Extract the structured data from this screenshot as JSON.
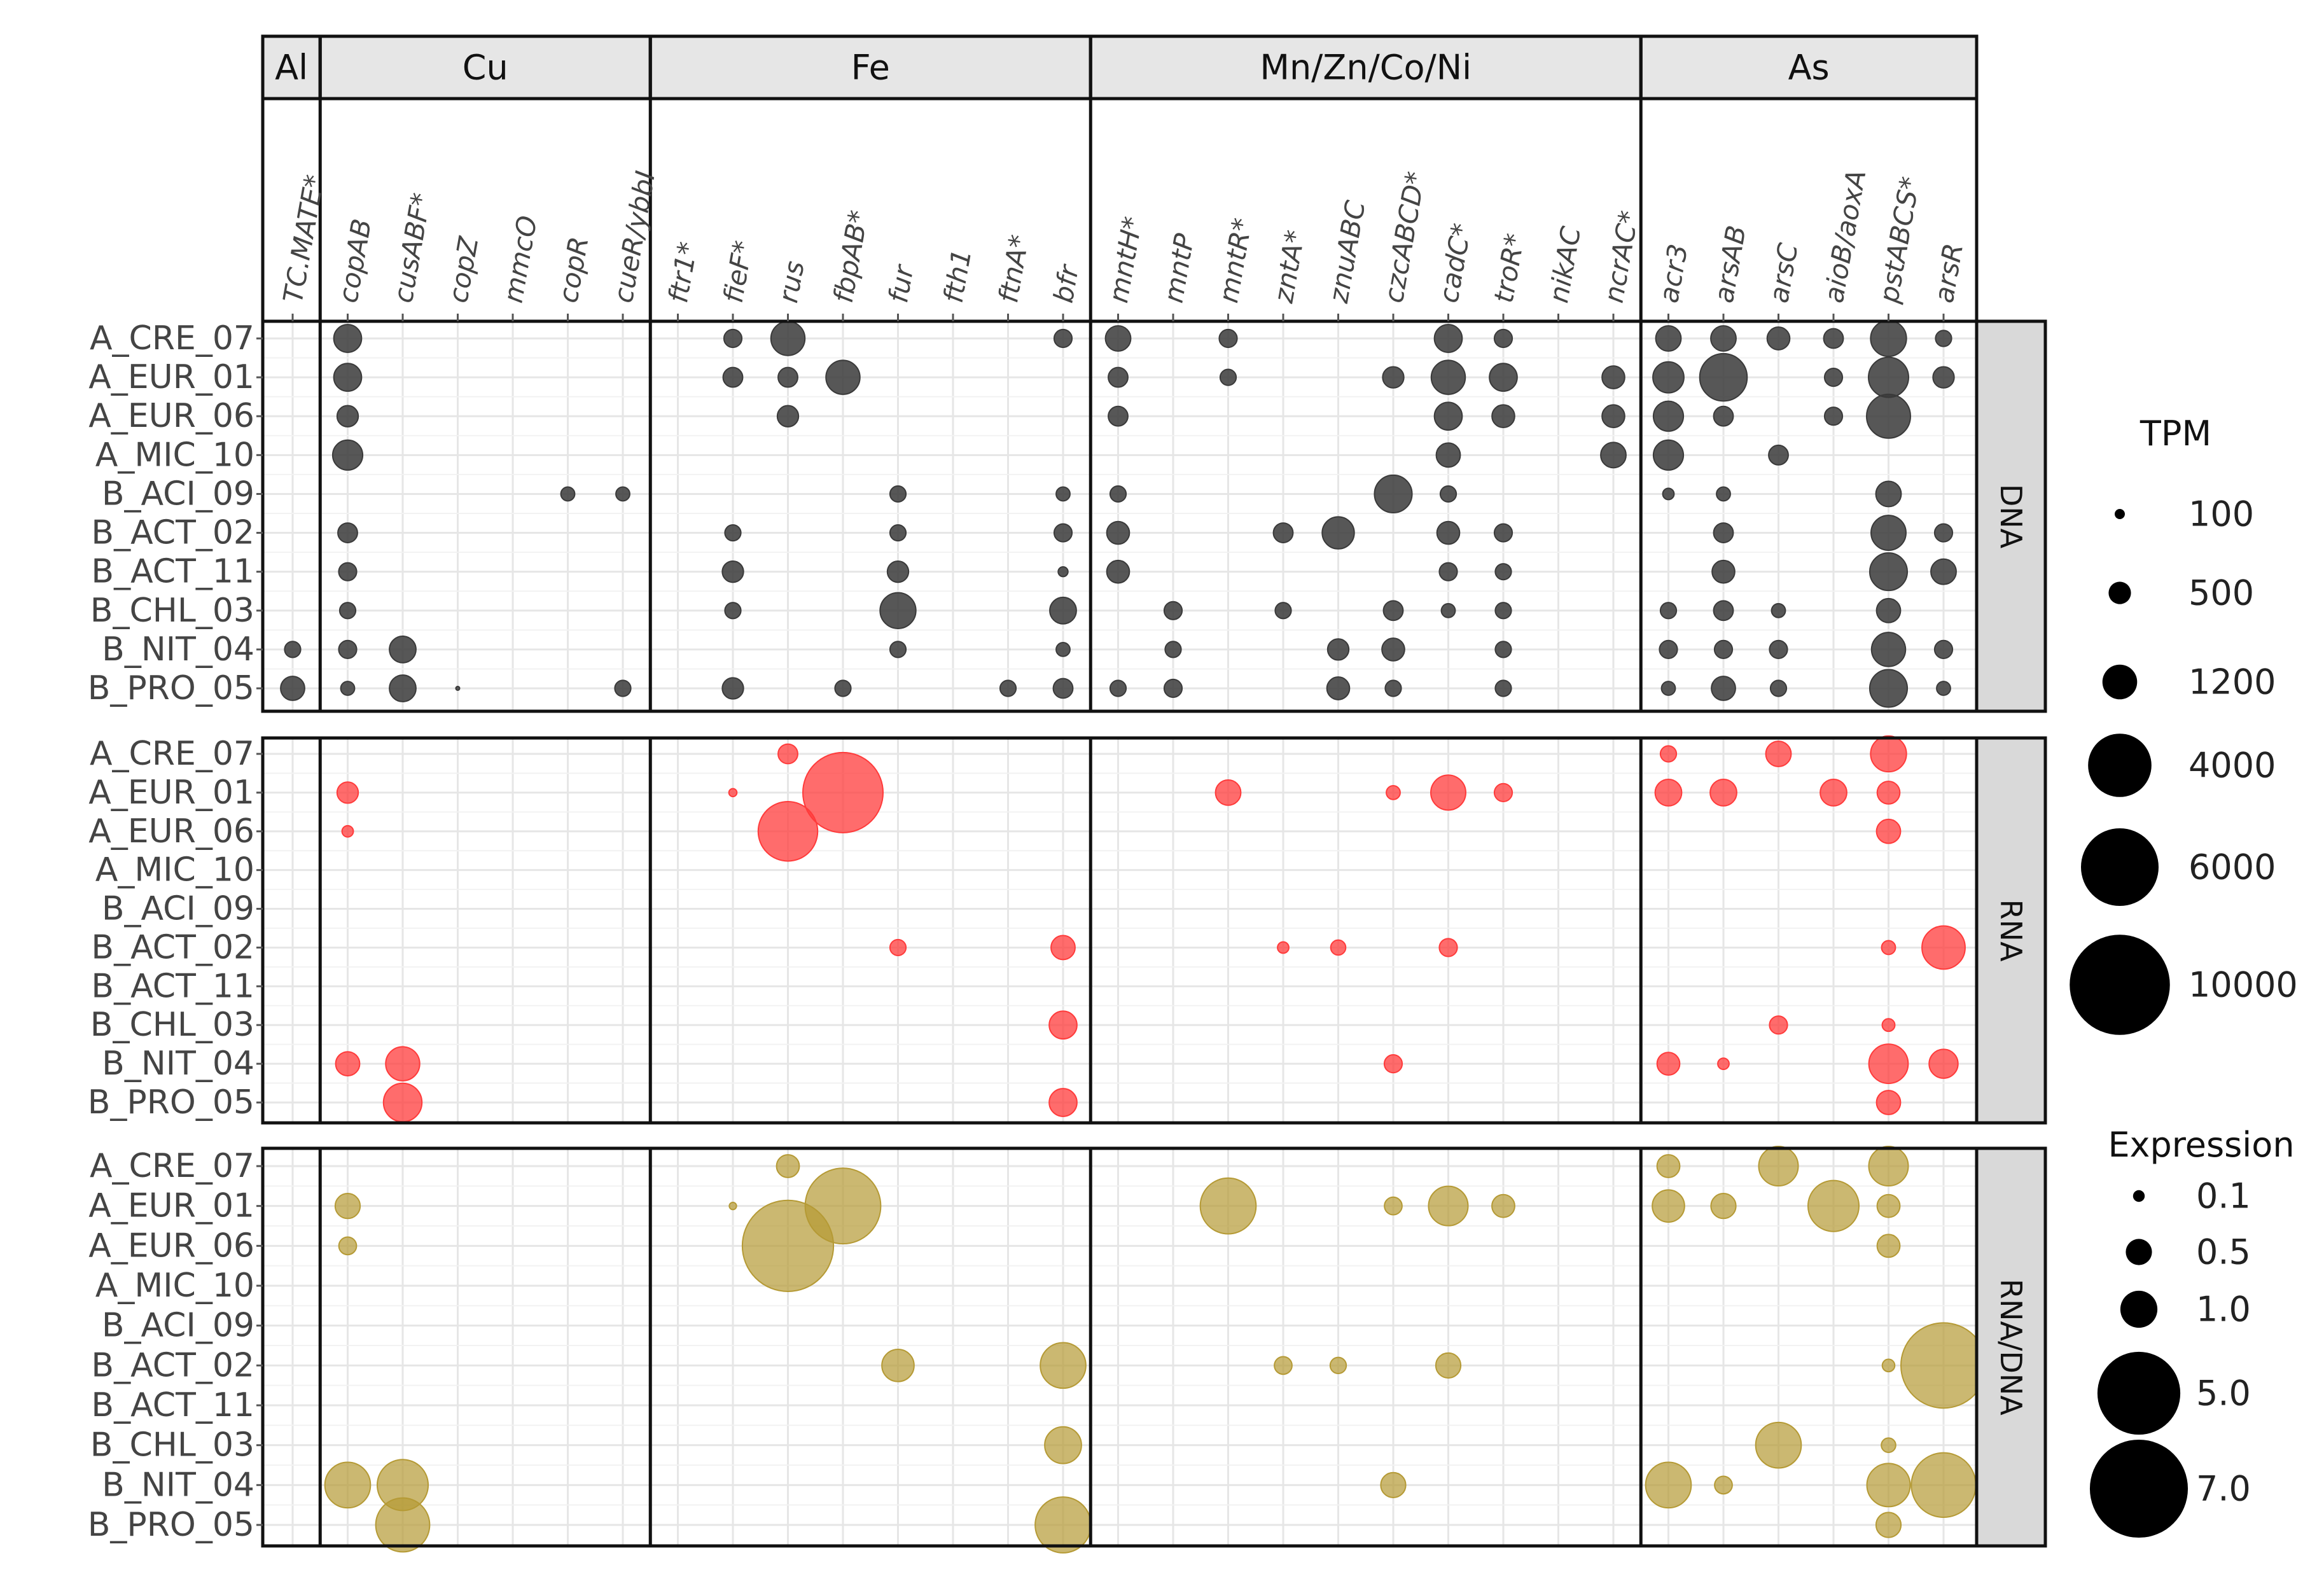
{
  "chart_data": {
    "type": "scatter",
    "subtype": "bubble-matrix",
    "element_groups": [
      {
        "name": "Al",
        "genes": [
          "TC.MATE*"
        ]
      },
      {
        "name": "Cu",
        "genes": [
          "copAB",
          "cusABF*",
          "copZ",
          "mmcO",
          "copR",
          "cueR/ybbI"
        ]
      },
      {
        "name": "Fe",
        "genes": [
          "ftr1*",
          "fieF*",
          "rus",
          "fbpAB*",
          "fur",
          "fth1",
          "ftnA*",
          "bfr"
        ]
      },
      {
        "name": "Mn/Zn/Co/Ni",
        "genes": [
          "mntH*",
          "mntP",
          "mntR*",
          "zntA*",
          "znuABC",
          "czcABCD*",
          "cadC*",
          "troR*",
          "nikAC",
          "ncrAC*"
        ]
      },
      {
        "name": "As",
        "genes": [
          "acr3",
          "arsAB",
          "arsC",
          "aioB/aoxA",
          "pstABCS*",
          "arsR"
        ]
      }
    ],
    "genes": [
      "TC.MATE*",
      "copAB",
      "cusABF*",
      "copZ",
      "mmcO",
      "copR",
      "cueR/ybbI",
      "ftr1*",
      "fieF*",
      "rus",
      "fbpAB*",
      "fur",
      "fth1",
      "ftnA*",
      "bfr",
      "mntH*",
      "mntP",
      "mntR*",
      "zntA*",
      "znuABC",
      "czcABCD*",
      "cadC*",
      "troR*",
      "nikAC",
      "ncrAC*",
      "acr3",
      "arsAB",
      "arsC",
      "aioB/aoxA",
      "pstABCS*",
      "arsR"
    ],
    "genomes": [
      "A_CRE_07",
      "A_EUR_01",
      "A_EUR_06",
      "A_MIC_10",
      "B_ACI_09",
      "B_ACT_02",
      "B_ACT_11",
      "B_CHL_03",
      "B_NIT_04",
      "B_PRO_05"
    ],
    "panels": [
      {
        "strip": "DNA",
        "measure": "TPM",
        "color": "#3a3a3a",
        "points": [
          [
            "A_CRE_07",
            "copAB",
            1200
          ],
          [
            "A_CRE_07",
            "fieF*",
            500
          ],
          [
            "A_CRE_07",
            "rus",
            1800
          ],
          [
            "A_CRE_07",
            "bfr",
            500
          ],
          [
            "A_CRE_07",
            "mntH*",
            1000
          ],
          [
            "A_CRE_07",
            "mntR*",
            500
          ],
          [
            "A_CRE_07",
            "cadC*",
            1200
          ],
          [
            "A_CRE_07",
            "troR*",
            500
          ],
          [
            "A_CRE_07",
            "acr3",
            1000
          ],
          [
            "A_CRE_07",
            "arsAB",
            1000
          ],
          [
            "A_CRE_07",
            "arsC",
            800
          ],
          [
            "A_CRE_07",
            "aioB/aoxA",
            600
          ],
          [
            "A_CRE_07",
            "pstABCS*",
            2000
          ],
          [
            "A_CRE_07",
            "arsR",
            400
          ],
          [
            "A_EUR_01",
            "copAB",
            1200
          ],
          [
            "A_EUR_01",
            "fieF*",
            600
          ],
          [
            "A_EUR_01",
            "rus",
            600
          ],
          [
            "A_EUR_01",
            "fbpAB*",
            1800
          ],
          [
            "A_EUR_01",
            "mntH*",
            600
          ],
          [
            "A_EUR_01",
            "mntR*",
            400
          ],
          [
            "A_EUR_01",
            "czcABCD*",
            700
          ],
          [
            "A_EUR_01",
            "cadC*",
            1800
          ],
          [
            "A_EUR_01",
            "troR*",
            1200
          ],
          [
            "A_EUR_01",
            "ncrAC*",
            800
          ],
          [
            "A_EUR_01",
            "acr3",
            1500
          ],
          [
            "A_EUR_01",
            "arsAB",
            3500
          ],
          [
            "A_EUR_01",
            "aioB/aoxA",
            500
          ],
          [
            "A_EUR_01",
            "pstABCS*",
            2500
          ],
          [
            "A_EUR_01",
            "arsR",
            700
          ],
          [
            "A_EUR_06",
            "copAB",
            700
          ],
          [
            "A_EUR_06",
            "rus",
            700
          ],
          [
            "A_EUR_06",
            "mntH*",
            600
          ],
          [
            "A_EUR_06",
            "cadC*",
            1200
          ],
          [
            "A_EUR_06",
            "troR*",
            800
          ],
          [
            "A_EUR_06",
            "ncrAC*",
            800
          ],
          [
            "A_EUR_06",
            "acr3",
            1400
          ],
          [
            "A_EUR_06",
            "arsAB",
            600
          ],
          [
            "A_EUR_06",
            "aioB/aoxA",
            500
          ],
          [
            "A_EUR_06",
            "pstABCS*",
            3000
          ],
          [
            "A_MIC_10",
            "copAB",
            1400
          ],
          [
            "A_MIC_10",
            "cadC*",
            900
          ],
          [
            "A_MIC_10",
            "ncrAC*",
            1000
          ],
          [
            "A_MIC_10",
            "acr3",
            1400
          ],
          [
            "A_MIC_10",
            "arsC",
            600
          ],
          [
            "B_ACI_09",
            "copR",
            300
          ],
          [
            "B_ACI_09",
            "cueR/ybbI",
            300
          ],
          [
            "B_ACI_09",
            "fur",
            400
          ],
          [
            "B_ACI_09",
            "bfr",
            300
          ],
          [
            "B_ACI_09",
            "mntH*",
            400
          ],
          [
            "B_ACI_09",
            "czcABCD*",
            2200
          ],
          [
            "B_ACI_09",
            "cadC*",
            400
          ],
          [
            "B_ACI_09",
            "acr3",
            200
          ],
          [
            "B_ACI_09",
            "arsAB",
            300
          ],
          [
            "B_ACI_09",
            "pstABCS*",
            1000
          ],
          [
            "B_ACT_02",
            "copAB",
            600
          ],
          [
            "B_ACT_02",
            "fieF*",
            400
          ],
          [
            "B_ACT_02",
            "fur",
            400
          ],
          [
            "B_ACT_02",
            "bfr",
            500
          ],
          [
            "B_ACT_02",
            "mntH*",
            800
          ],
          [
            "B_ACT_02",
            "zntA*",
            600
          ],
          [
            "B_ACT_02",
            "znuABC",
            1600
          ],
          [
            "B_ACT_02",
            "cadC*",
            800
          ],
          [
            "B_ACT_02",
            "troR*",
            500
          ],
          [
            "B_ACT_02",
            "arsAB",
            600
          ],
          [
            "B_ACT_02",
            "pstABCS*",
            1900
          ],
          [
            "B_ACT_02",
            "arsR",
            500
          ],
          [
            "B_ACT_11",
            "copAB",
            500
          ],
          [
            "B_ACT_11",
            "fieF*",
            700
          ],
          [
            "B_ACT_11",
            "fur",
            700
          ],
          [
            "B_ACT_11",
            "bfr",
            150
          ],
          [
            "B_ACT_11",
            "mntH*",
            800
          ],
          [
            "B_ACT_11",
            "cadC*",
            500
          ],
          [
            "B_ACT_11",
            "troR*",
            400
          ],
          [
            "B_ACT_11",
            "arsAB",
            800
          ],
          [
            "B_ACT_11",
            "pstABCS*",
            2200
          ],
          [
            "B_ACT_11",
            "arsR",
            1000
          ],
          [
            "B_CHL_03",
            "copAB",
            400
          ],
          [
            "B_CHL_03",
            "fieF*",
            400
          ],
          [
            "B_CHL_03",
            "fur",
            2000
          ],
          [
            "B_CHL_03",
            "bfr",
            1100
          ],
          [
            "B_CHL_03",
            "mntP",
            500
          ],
          [
            "B_CHL_03",
            "zntA*",
            400
          ],
          [
            "B_CHL_03",
            "czcABCD*",
            600
          ],
          [
            "B_CHL_03",
            "cadC*",
            300
          ],
          [
            "B_CHL_03",
            "troR*",
            400
          ],
          [
            "B_CHL_03",
            "acr3",
            400
          ],
          [
            "B_CHL_03",
            "arsAB",
            600
          ],
          [
            "B_CHL_03",
            "arsC",
            300
          ],
          [
            "B_CHL_03",
            "pstABCS*",
            900
          ],
          [
            "B_NIT_04",
            "TC.MATE*",
            400
          ],
          [
            "B_NIT_04",
            "copAB",
            500
          ],
          [
            "B_NIT_04",
            "cusABF*",
            1100
          ],
          [
            "B_NIT_04",
            "fur",
            400
          ],
          [
            "B_NIT_04",
            "bfr",
            300
          ],
          [
            "B_NIT_04",
            "mntP",
            400
          ],
          [
            "B_NIT_04",
            "znuABC",
            700
          ],
          [
            "B_NIT_04",
            "czcABCD*",
            800
          ],
          [
            "B_NIT_04",
            "troR*",
            400
          ],
          [
            "B_NIT_04",
            "acr3",
            500
          ],
          [
            "B_NIT_04",
            "arsAB",
            500
          ],
          [
            "B_NIT_04",
            "arsC",
            500
          ],
          [
            "B_NIT_04",
            "pstABCS*",
            1800
          ],
          [
            "B_NIT_04",
            "arsR",
            500
          ],
          [
            "B_PRO_05",
            "TC.MATE*",
            900
          ],
          [
            "B_PRO_05",
            "copAB",
            300
          ],
          [
            "B_PRO_05",
            "cusABF*",
            1100
          ],
          [
            "B_PRO_05",
            "copZ",
            20
          ],
          [
            "B_PRO_05",
            "cueR/ybbI",
            400
          ],
          [
            "B_PRO_05",
            "fieF*",
            700
          ],
          [
            "B_PRO_05",
            "fbpAB*",
            400
          ],
          [
            "B_PRO_05",
            "ftnA*",
            400
          ],
          [
            "B_PRO_05",
            "bfr",
            600
          ],
          [
            "B_PRO_05",
            "mntH*",
            400
          ],
          [
            "B_PRO_05",
            "mntP",
            500
          ],
          [
            "B_PRO_05",
            "znuABC",
            800
          ],
          [
            "B_PRO_05",
            "czcABCD*",
            400
          ],
          [
            "B_PRO_05",
            "troR*",
            400
          ],
          [
            "B_PRO_05",
            "acr3",
            300
          ],
          [
            "B_PRO_05",
            "arsAB",
            900
          ],
          [
            "B_PRO_05",
            "arsC",
            400
          ],
          [
            "B_PRO_05",
            "pstABCS*",
            2200
          ],
          [
            "B_PRO_05",
            "arsR",
            300
          ]
        ]
      },
      {
        "strip": "RNA",
        "measure": "TPM",
        "color": "#ff3b3b",
        "points": [
          [
            "A_CRE_07",
            "rus",
            600
          ],
          [
            "A_CRE_07",
            "acr3",
            400
          ],
          [
            "A_CRE_07",
            "arsC",
            1000
          ],
          [
            "A_CRE_07",
            "pstABCS*",
            2000
          ],
          [
            "A_EUR_01",
            "copAB",
            700
          ],
          [
            "A_EUR_01",
            "fieF*",
            100
          ],
          [
            "A_EUR_01",
            "fbpAB*",
            10000
          ],
          [
            "A_EUR_01",
            "mntR*",
            1000
          ],
          [
            "A_EUR_01",
            "czcABCD*",
            300
          ],
          [
            "A_EUR_01",
            "cadC*",
            1900
          ],
          [
            "A_EUR_01",
            "troR*",
            500
          ],
          [
            "A_EUR_01",
            "acr3",
            1100
          ],
          [
            "A_EUR_01",
            "arsAB",
            1100
          ],
          [
            "A_EUR_01",
            "aioB/aoxA",
            1100
          ],
          [
            "A_EUR_01",
            "pstABCS*",
            800
          ],
          [
            "A_EUR_06",
            "copAB",
            200
          ],
          [
            "A_EUR_06",
            "rus",
            5500
          ],
          [
            "A_EUR_06",
            "pstABCS*",
            900
          ],
          [
            "B_ACT_02",
            "fur",
            400
          ],
          [
            "B_ACT_02",
            "bfr",
            900
          ],
          [
            "B_ACT_02",
            "zntA*",
            200
          ],
          [
            "B_ACT_02",
            "znuABC",
            350
          ],
          [
            "B_ACT_02",
            "cadC*",
            500
          ],
          [
            "B_ACT_02",
            "pstABCS*",
            300
          ],
          [
            "B_ACT_02",
            "arsR",
            2900
          ],
          [
            "B_CHL_03",
            "bfr",
            1200
          ],
          [
            "B_CHL_03",
            "arsC",
            500
          ],
          [
            "B_CHL_03",
            "pstABCS*",
            250
          ],
          [
            "B_NIT_04",
            "copAB",
            900
          ],
          [
            "B_NIT_04",
            "cusABF*",
            1800
          ],
          [
            "B_NIT_04",
            "czcABCD*",
            500
          ],
          [
            "B_NIT_04",
            "acr3",
            800
          ],
          [
            "B_NIT_04",
            "arsAB",
            200
          ],
          [
            "B_NIT_04",
            "pstABCS*",
            2400
          ],
          [
            "B_NIT_04",
            "arsR",
            1300
          ],
          [
            "B_PRO_05",
            "cusABF*",
            2300
          ],
          [
            "B_PRO_05",
            "bfr",
            1200
          ],
          [
            "B_PRO_05",
            "pstABCS*",
            900
          ]
        ]
      },
      {
        "strip": "RNA/DNA",
        "measure": "Expression",
        "color": "#b59a35",
        "points": [
          [
            "A_CRE_07",
            "rus",
            0.5
          ],
          [
            "A_CRE_07",
            "acr3",
            0.5
          ],
          [
            "A_CRE_07",
            "arsC",
            1.5
          ],
          [
            "A_CRE_07",
            "pstABCS*",
            1.5
          ],
          [
            "A_EUR_01",
            "copAB",
            0.6
          ],
          [
            "A_EUR_01",
            "fieF*",
            0.05
          ],
          [
            "A_EUR_01",
            "fbpAB*",
            5.5
          ],
          [
            "A_EUR_01",
            "mntR*",
            3.0
          ],
          [
            "A_EUR_01",
            "czcABCD*",
            0.3
          ],
          [
            "A_EUR_01",
            "cadC*",
            1.5
          ],
          [
            "A_EUR_01",
            "troR*",
            0.5
          ],
          [
            "A_EUR_01",
            "acr3",
            1.0
          ],
          [
            "A_EUR_01",
            "arsAB",
            0.6
          ],
          [
            "A_EUR_01",
            "aioB/aoxA",
            2.5
          ],
          [
            "A_EUR_01",
            "pstABCS*",
            0.5
          ],
          [
            "A_EUR_06",
            "copAB",
            0.3
          ],
          [
            "A_EUR_06",
            "rus",
            8.0
          ],
          [
            "A_EUR_06",
            "pstABCS*",
            0.5
          ],
          [
            "B_ACT_02",
            "fur",
            1.0
          ],
          [
            "B_ACT_02",
            "bfr",
            2.0
          ],
          [
            "B_ACT_02",
            "zntA*",
            0.3
          ],
          [
            "B_ACT_02",
            "znuABC",
            0.25
          ],
          [
            "B_ACT_02",
            "cadC*",
            0.6
          ],
          [
            "B_ACT_02",
            "pstABCS*",
            0.15
          ],
          [
            "B_ACT_02",
            "arsR",
            7.0
          ],
          [
            "B_CHL_03",
            "bfr",
            1.3
          ],
          [
            "B_CHL_03",
            "arsC",
            2.0
          ],
          [
            "B_CHL_03",
            "pstABCS*",
            0.2
          ],
          [
            "B_NIT_04",
            "copAB",
            2.0
          ],
          [
            "B_NIT_04",
            "cusABF*",
            2.5
          ],
          [
            "B_NIT_04",
            "czcABCD*",
            0.6
          ],
          [
            "B_NIT_04",
            "acr3",
            2.0
          ],
          [
            "B_NIT_04",
            "arsAB",
            0.3
          ],
          [
            "B_NIT_04",
            "pstABCS*",
            1.8
          ],
          [
            "B_NIT_04",
            "arsR",
            4.0
          ],
          [
            "B_PRO_05",
            "cusABF*",
            2.8
          ],
          [
            "B_PRO_05",
            "bfr",
            3.0
          ],
          [
            "B_PRO_05",
            "pstABCS*",
            0.6
          ]
        ]
      }
    ],
    "legends": [
      {
        "title": "TPM",
        "breaks": [
          100,
          500,
          1200,
          4000,
          6000,
          10000
        ],
        "labels": [
          "100",
          "500",
          "1200",
          "4000",
          "6000",
          "10000"
        ]
      },
      {
        "title": "Expression",
        "breaks": [
          0.1,
          0.5,
          1.0,
          5.0,
          7.0
        ],
        "labels": [
          "0.1",
          "0.5",
          "1.0",
          "5.0",
          "7.0"
        ]
      }
    ],
    "grid": true,
    "legend_position": "right"
  }
}
